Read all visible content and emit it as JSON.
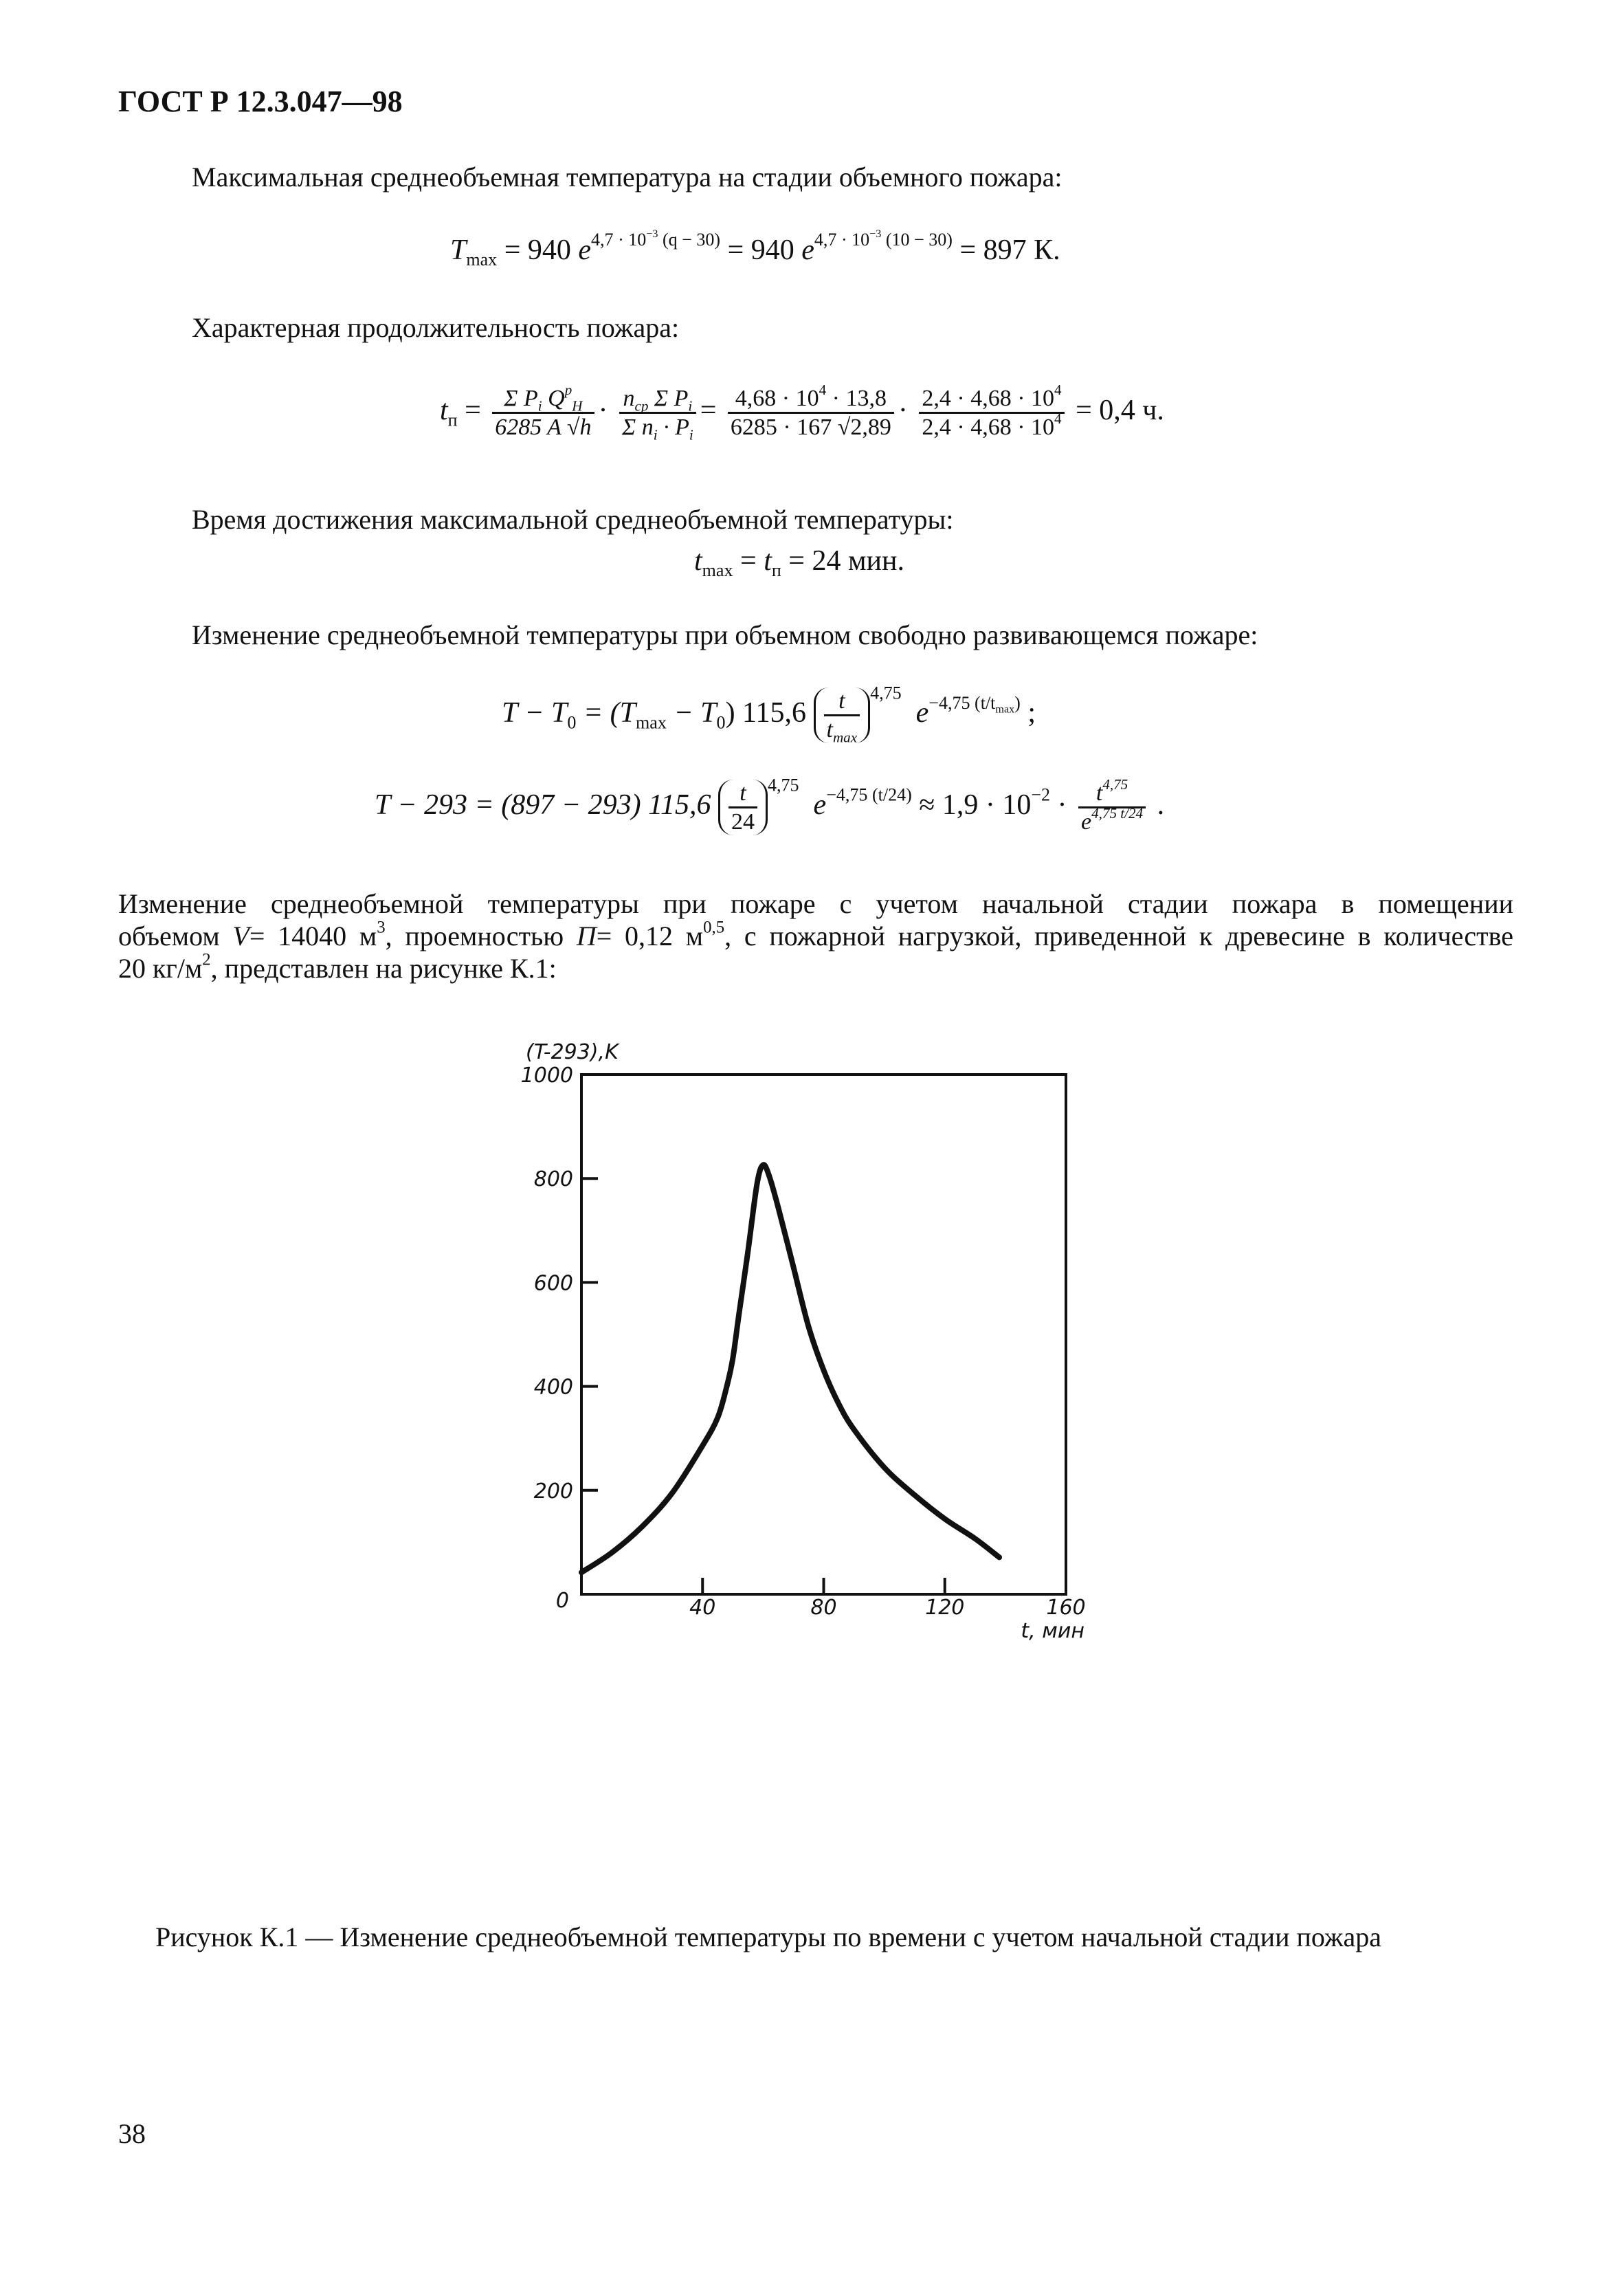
{
  "header": {
    "title": "ГОСТ Р 12.3.047—98"
  },
  "p1": "Максимальная среднеобъемная температура на стадии объемного пожара:",
  "f1": [
    "T",
    "max",
    " = 940 ",
    "e",
    "4,7 · 10",
    "−3",
    " (q − 30)",
    " = 940 ",
    "e",
    "4,7 · 10",
    "−3",
    " (10 − 30)",
    " = 897 К."
  ],
  "p2": "Характерная продолжительность пожара:",
  "f2": {
    "lhs": "t",
    "lhs_sub": "п",
    "a_num": "Σ P",
    "a_num_sub": "i",
    "a_num2": " Q",
    "a_num_sup": "р",
    "a_num_sub2": "H",
    "a_den": "6285 A √h",
    "b_num": "n",
    "b_num_sub": "ср",
    "b_num2": " Σ P",
    "b_num_sub2": "i",
    "b_den": "Σ n",
    "b_den_sub": "i",
    "b_den2": " · P",
    "b_den_sub2": "i",
    "c_num": "4,68 · 10",
    "c_num_sup": "4",
    "c_num2": " · 13,8",
    "c_den": "6285 · 167 √2,89",
    "d_num": "2,4 · 4,68 · 10",
    "d_num_sup": "4",
    "d_den": "2,4 · 4,68 · 10",
    "d_den_sup": "4",
    "result": "= 0,4 ч."
  },
  "p3": "Время достижения максимальной среднеобъемной температуры:",
  "f3": [
    "t",
    "max",
    " = ",
    "t",
    "п",
    " = 24 мин."
  ],
  "p4": "Изменение среднеобъемной температуры при объемном свободно развивающемся пожаре:",
  "f4": {
    "a": "T − T",
    "a_sub": "0",
    "b": " = (T",
    "b_sub": "max",
    "c": " − T",
    "c_sub": "0",
    "d": ") 115,6",
    "num": "t",
    "den": "t",
    "den_sub": "max",
    "pow": "4,75",
    "e": "e",
    "e_sup": "−4,75 (t/t",
    "e_sup_sub": "max",
    "e_sup_end": ")",
    "end": " ;"
  },
  "f5": {
    "a": "T − 293 = (897 − 293) 115,6",
    "num": "t",
    "den": "24",
    "pow": "4,75",
    "e": "e",
    "e_sup": "−4,75 (t/24)",
    "b": " ≈ 1,9 · 10",
    "b_sup": "−2",
    "c": " ·",
    "fnum": "t",
    "fnum_sup": "4,75",
    "fden": "e",
    "fden_sup": "4,75 t/24",
    "end": " ."
  },
  "p5": {
    "line1": "Изменение среднеобъемной температуры при пожаре с учетом начальной стадии пожара в помещении",
    "l2a": "объемом ",
    "l2v": "V",
    "l2b": "= 14040 м",
    "l2b_sup": "3",
    "l2c": ", проемностью ",
    "l2p": "П",
    "l2d": "= 0,12 м",
    "l2d_sup": "0,5",
    "l2e": ", с пожарной нагрузкой, приведенной к древесине в количестве",
    "l3a": "20 кг/м",
    "l3a_sup": "2",
    "l3b": ", представлен на рисунке К.1:"
  },
  "chart_data": {
    "type": "line",
    "ylabel": "(T-293),K",
    "xlabel": "t, мин",
    "xlim": [
      0,
      160
    ],
    "ylim": [
      0,
      1000
    ],
    "xticks": [
      "0",
      "40",
      "80",
      "120",
      "160"
    ],
    "yticks": [
      "200",
      "400",
      "600",
      "800",
      "1000"
    ],
    "grid": false,
    "series": [
      {
        "x": [
          0,
          10,
          20,
          30,
          40,
          45,
          48,
          50,
          52,
          55,
          58,
          60,
          62,
          65,
          70,
          75,
          80,
          85,
          90,
          100,
          110,
          120,
          130,
          138
        ],
        "y": [
          42,
          80,
          130,
          195,
          286,
          340,
          400,
          454,
          538,
          660,
          790,
          826,
          805,
          744,
          630,
          515,
          431,
          366,
          317,
          244,
          191,
          145,
          107,
          71
        ]
      }
    ]
  },
  "caption": "Рисунок К.1 — Изменение среднеобъемной температуры по времени с учетом начальной стадии пожара",
  "page_number": "38"
}
